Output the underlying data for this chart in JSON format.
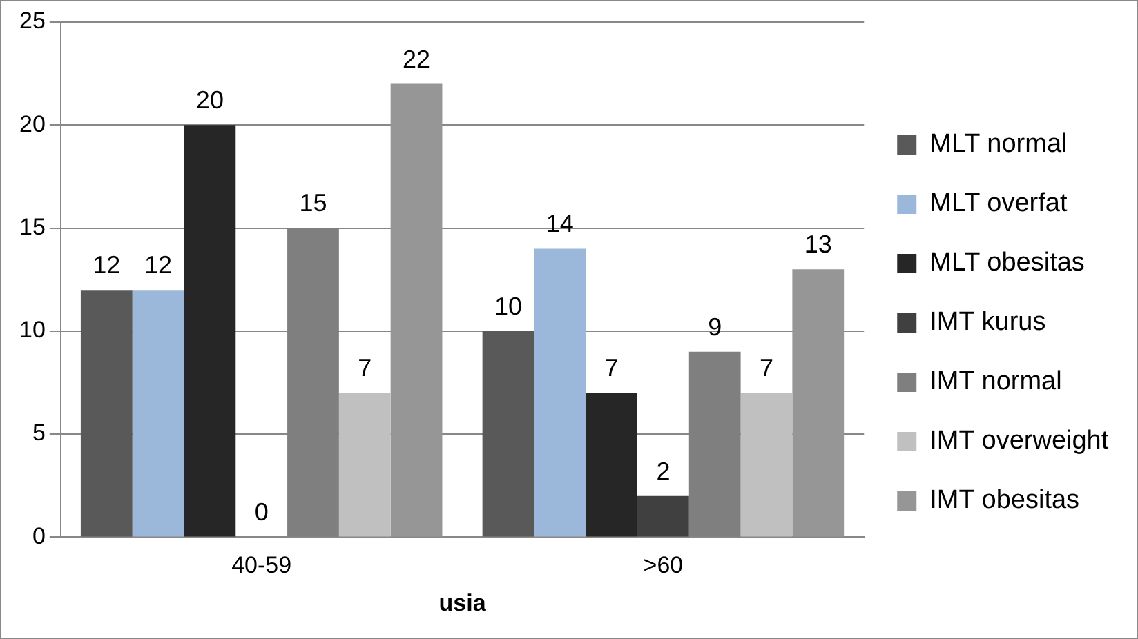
{
  "chart_data": {
    "type": "bar",
    "xlabel": "usia",
    "categories": [
      "40-59",
      ">60"
    ],
    "series": [
      {
        "name": "MLT normal",
        "color": "#595959",
        "values": [
          12,
          10
        ]
      },
      {
        "name": "MLT overfat",
        "color": "#9bb7d9",
        "values": [
          12,
          14
        ]
      },
      {
        "name": "MLT obesitas",
        "color": "#262626",
        "values": [
          20,
          7
        ]
      },
      {
        "name": "IMT kurus",
        "color": "#404040",
        "values": [
          0,
          2
        ]
      },
      {
        "name": "IMT normal",
        "color": "#7f7f7f",
        "values": [
          15,
          9
        ]
      },
      {
        "name": "IMT overweight",
        "color": "#c0c0c0",
        "values": [
          7,
          7
        ]
      },
      {
        "name": "IMT obesitas",
        "color": "#969696",
        "values": [
          22,
          13
        ]
      }
    ],
    "ylim": [
      0,
      25
    ],
    "yticks": [
      0,
      5,
      10,
      15,
      20,
      25
    ],
    "grid": "y",
    "legend": "right",
    "data_labels": true
  }
}
